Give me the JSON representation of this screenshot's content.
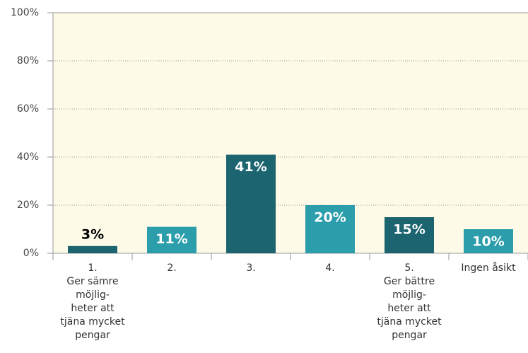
{
  "chart_data": {
    "type": "bar",
    "categories": [
      "1.\nGer sämre\nmöjlig-\nheter att\ntjäna mycket\npengar",
      "2.",
      "3.",
      "4.",
      "5.\nGer bättre\nmöjlig-\nheter att\ntjäna mycket\npengar",
      "Ingen åsikt"
    ],
    "values": [
      3,
      11,
      41,
      20,
      15,
      10
    ],
    "value_labels": [
      "3%",
      "11%",
      "41%",
      "20%",
      "15%",
      "10%"
    ],
    "colors": [
      "#1b6470",
      "#2b9dab",
      "#1b6470",
      "#2b9dab",
      "#1b6470",
      "#2b9dab"
    ],
    "ylim": [
      0,
      100
    ],
    "yticks": [
      {
        "value": 0,
        "label": "0%"
      },
      {
        "value": 20,
        "label": "20%"
      },
      {
        "value": 40,
        "label": "40%"
      },
      {
        "value": 60,
        "label": "60%"
      },
      {
        "value": 80,
        "label": "80%"
      },
      {
        "value": 100,
        "label": "100%"
      }
    ],
    "grid": true
  }
}
